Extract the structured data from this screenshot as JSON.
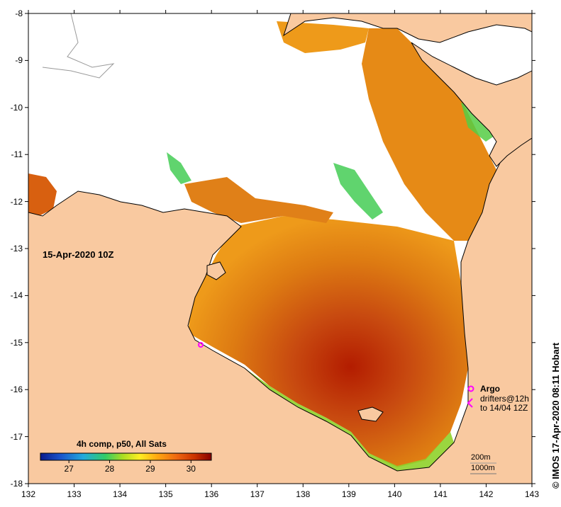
{
  "map": {
    "lon_range": [
      132,
      143
    ],
    "lat_range": [
      -18,
      -8
    ],
    "lon_ticks": [
      "132",
      "133",
      "134",
      "135",
      "136",
      "137",
      "138",
      "139",
      "140",
      "141",
      "142",
      "143"
    ],
    "lat_ticks": [
      "-8",
      "-9",
      "-10",
      "-11",
      "-12",
      "-13",
      "-14",
      "-15",
      "-16",
      "-17",
      "-18"
    ],
    "colors": {
      "land": "#f9c9a0",
      "cloud": "#ffffff",
      "outline": "#000000"
    }
  },
  "title_date": "15-Apr-2020 10Z",
  "legend": {
    "title": "4h comp, p50, All Sats",
    "range": [
      26.3,
      30.5
    ],
    "ticks": [
      "27",
      "28",
      "29",
      "30"
    ],
    "stops": [
      "#0a1a8c",
      "#1a55cc",
      "#22aadd",
      "#33cc66",
      "#aadd22",
      "#ffee22",
      "#ffaa11",
      "#ee6611",
      "#cc3300",
      "#880000"
    ]
  },
  "key": {
    "argo_label": "Argo",
    "drifter_line1": "drifters@12h",
    "drifter_line2": "to 14/04 12Z",
    "argo_color": "#ff00ff"
  },
  "depth": {
    "line1": "200m",
    "line2": "1000m"
  },
  "credit": "© IMOS 17-Apr-2020 08:11 Hobart"
}
